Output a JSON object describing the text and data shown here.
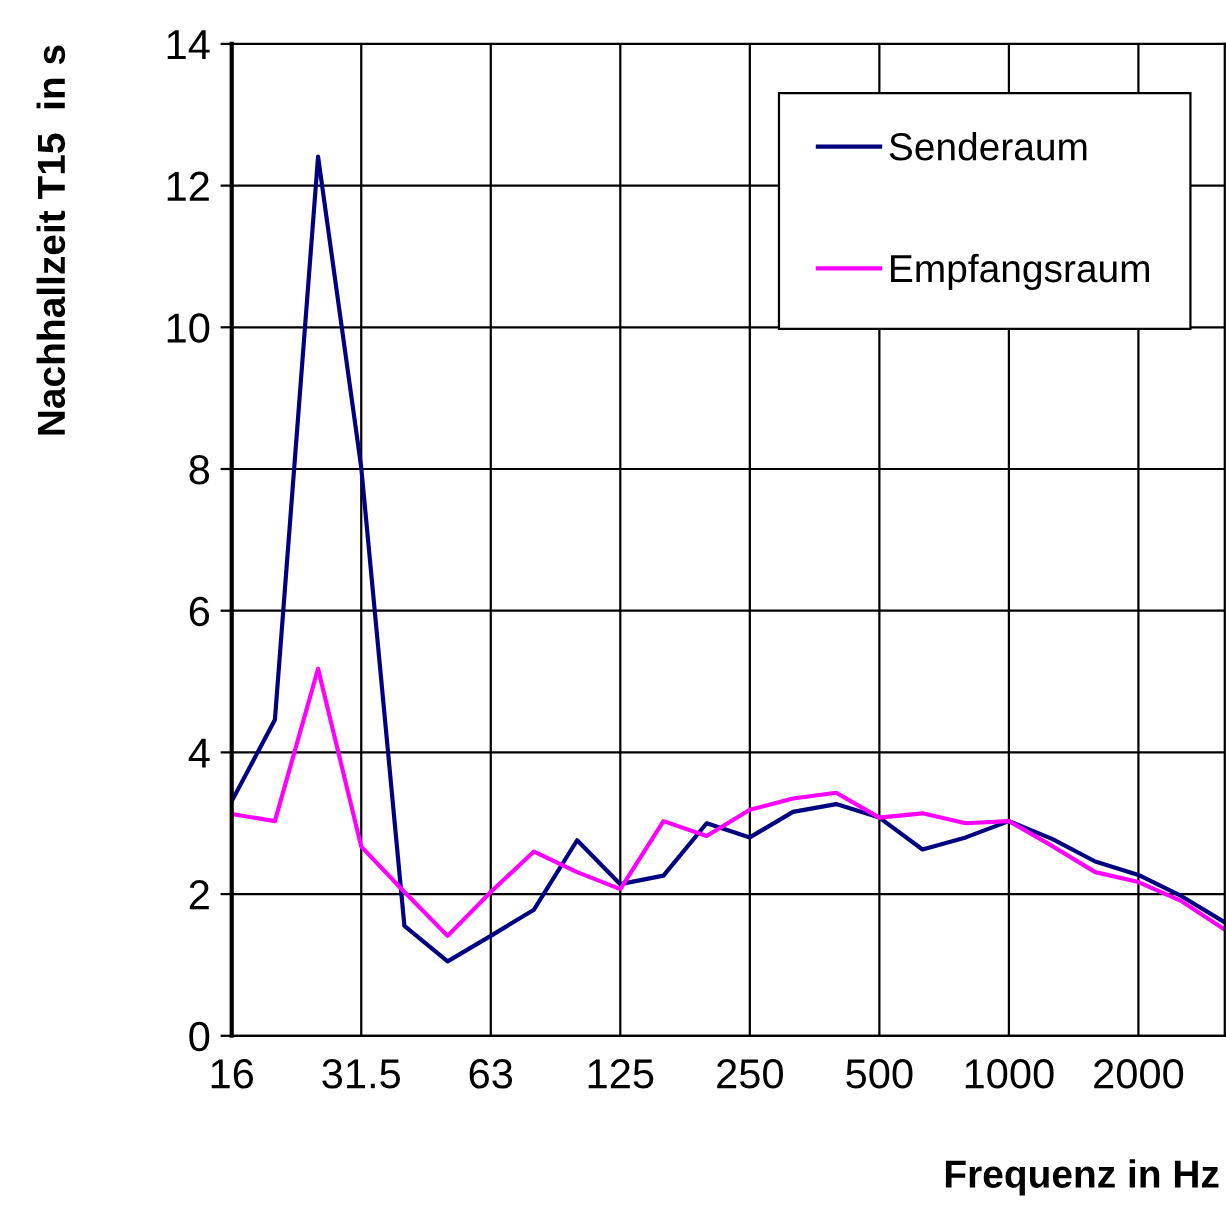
{
  "chart_data": {
    "type": "line",
    "xlabel": "Frequenz in Hz",
    "ylabel": "Nachhallzeit T15  in s",
    "categories": [
      "16",
      null,
      null,
      "31.5",
      null,
      null,
      "63",
      null,
      null,
      "125",
      null,
      null,
      "250",
      null,
      null,
      "500",
      null,
      null,
      "1000",
      null,
      null,
      "2000",
      null,
      null
    ],
    "series": [
      {
        "name": "Senderaum",
        "color": "#000080",
        "values": [
          3.31,
          4.46,
          12.41,
          8.02,
          1.55,
          1.05,
          1.41,
          1.78,
          2.76,
          2.14,
          2.26,
          3.0,
          2.8,
          3.16,
          3.27,
          3.08,
          2.63,
          2.8,
          3.03,
          2.78,
          2.46,
          2.27,
          1.97,
          1.6
        ]
      },
      {
        "name": "Empfangsraum",
        "color": "#ff00ff",
        "values": [
          3.13,
          3.03,
          5.18,
          2.67,
          2.03,
          1.41,
          2.03,
          2.6,
          2.31,
          2.07,
          3.03,
          2.82,
          3.19,
          3.35,
          3.43,
          3.08,
          3.14,
          3.0,
          3.03,
          2.68,
          2.31,
          2.17,
          1.9,
          1.5
        ]
      }
    ],
    "ylim": [
      0,
      14
    ],
    "yticks": [
      0,
      2,
      4,
      6,
      8,
      10,
      12,
      14
    ],
    "grid": true,
    "legend": "top right",
    "marker": "none",
    "line_style": "solid"
  }
}
